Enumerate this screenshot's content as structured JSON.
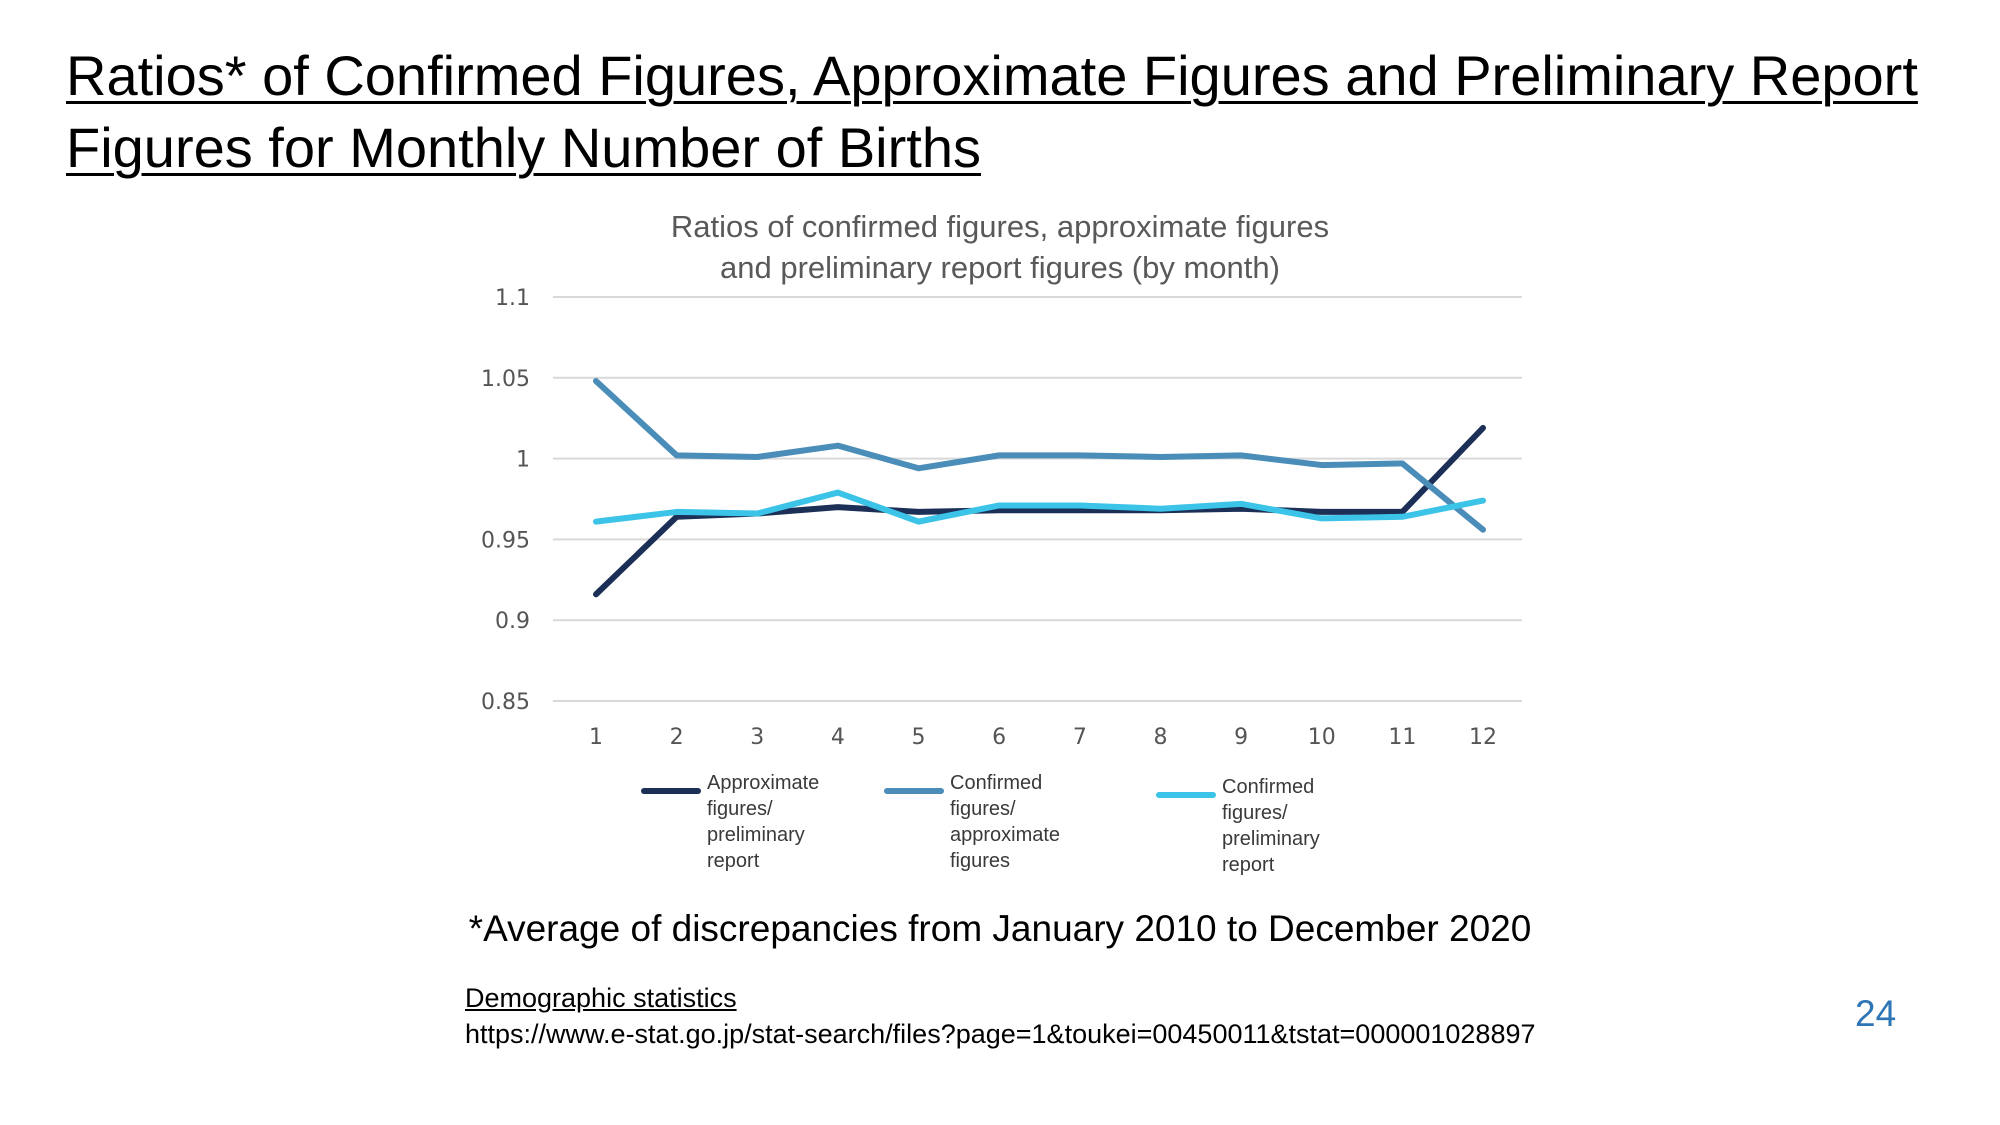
{
  "slide": {
    "title": "Ratios* of Confirmed Figures, Approximate Figures and Preliminary Report Figures for Monthly Number of Births",
    "footnote": "*Average of discrepancies from January 2010 to December 2020",
    "source_name": "Demographic statistics",
    "source_url": "https://www.e-stat.go.jp/stat-search/files?page=1&toukei=00450011&tstat=000001028897",
    "page_number": "24"
  },
  "chart_data": {
    "type": "line",
    "title": "Ratios of confirmed figures, approximate figures\nand preliminary report figures (by month)",
    "xlabel": "",
    "ylabel": "",
    "categories": [
      "1",
      "2",
      "3",
      "4",
      "5",
      "6",
      "7",
      "8",
      "9",
      "10",
      "11",
      "12"
    ],
    "ylim": [
      0.85,
      1.1
    ],
    "yticks": [
      1.1,
      1.05,
      1,
      0.95,
      0.9,
      0.85
    ],
    "ytick_labels": [
      "1.1",
      "1.05",
      "1",
      "0.95",
      "0.9",
      "0.85"
    ],
    "grid": true,
    "legend_position": "bottom",
    "series": [
      {
        "name": "Approximate figures/ preliminary report",
        "legend_label": "Approximate\nfigures/\npreliminary report",
        "color": "#1b2f57",
        "values": [
          0.916,
          0.964,
          0.966,
          0.97,
          0.967,
          0.968,
          0.968,
          0.968,
          0.969,
          0.967,
          0.967,
          1.019
        ]
      },
      {
        "name": "Confirmed figures/ approximate figures",
        "legend_label": "Confirmed figures/\napproximate\nfigures",
        "color": "#4a8db8",
        "values": [
          1.048,
          1.002,
          1.001,
          1.008,
          0.994,
          1.002,
          1.002,
          1.001,
          1.002,
          0.996,
          0.997,
          0.956
        ]
      },
      {
        "name": "Confirmed figures/ preliminary report",
        "legend_label": "Confirmed figures/\npreliminary report",
        "color": "#3cc3e8",
        "values": [
          0.961,
          0.967,
          0.966,
          0.979,
          0.961,
          0.971,
          0.971,
          0.969,
          0.972,
          0.963,
          0.964,
          0.974
        ]
      }
    ]
  }
}
